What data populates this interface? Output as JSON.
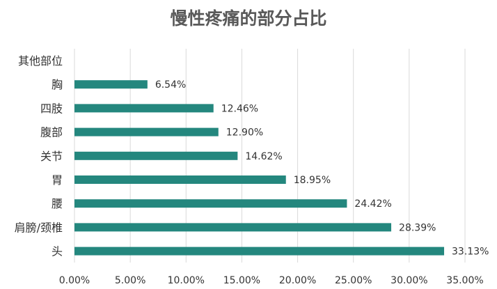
{
  "chart_data": {
    "type": "bar",
    "orientation": "horizontal",
    "title": "慢性疼痛的部分占比",
    "categories": [
      "其他部位",
      "胸",
      "四肢",
      "腹部",
      "关节",
      "胃",
      "腰",
      "肩膀/颈椎",
      "头"
    ],
    "values": [
      null,
      6.54,
      12.46,
      12.9,
      14.62,
      18.95,
      24.42,
      28.39,
      33.13
    ],
    "data_labels": [
      "",
      "6.54%",
      "12.46%",
      "12.90%",
      "14.62%",
      "18.95%",
      "24.42%",
      "28.39%",
      "33.13%"
    ],
    "x_ticks": [
      "0.00%",
      "5.00%",
      "10.00%",
      "15.00%",
      "20.00%",
      "25.00%",
      "30.00%",
      "35.00%"
    ],
    "xlim": [
      0,
      35
    ],
    "xlabel": "",
    "ylabel": "",
    "grid": true,
    "legend": "none",
    "colors": {
      "bar": "#24877E",
      "grid": "#D9D9D9",
      "title": "#595959",
      "text": "#333333"
    }
  }
}
